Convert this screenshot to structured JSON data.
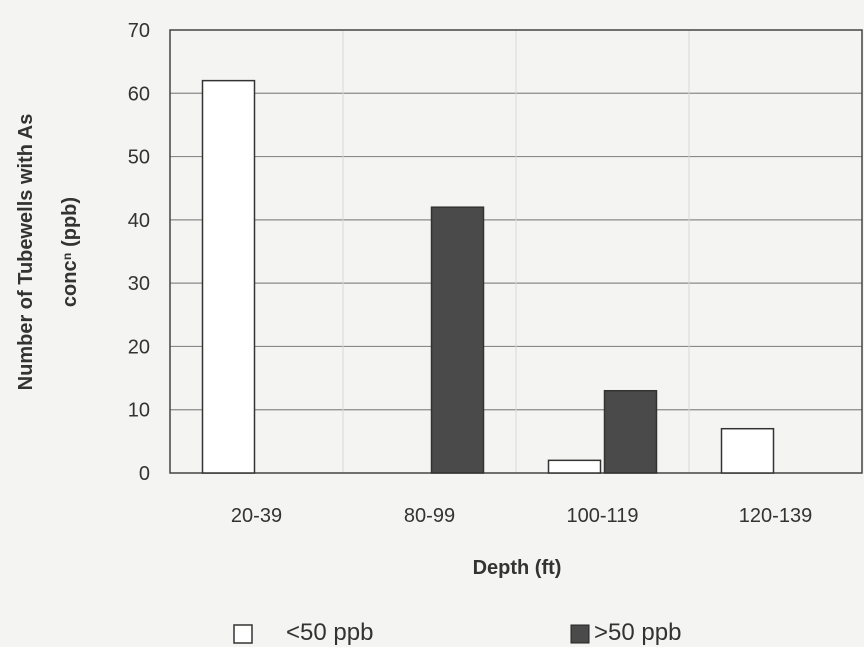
{
  "chart_data": {
    "type": "bar",
    "categories": [
      "20-39",
      "80-99",
      "100-119",
      "120-139"
    ],
    "series": [
      {
        "name": "<50 ppb",
        "values": [
          62,
          0,
          2,
          7
        ],
        "color": "#ffffff"
      },
      {
        "name": ">50 ppb",
        "values": [
          0,
          42,
          13,
          0
        ],
        "color": "#4a4a4a"
      }
    ],
    "title": "",
    "xlabel": "Depth (ft)",
    "ylabel_line1": "Number of Tubewells with As",
    "ylabel_line2": "concⁿ (ppb)",
    "ylim": [
      0,
      70
    ],
    "yticks": [
      0,
      10,
      20,
      30,
      40,
      50,
      60,
      70
    ],
    "grid": true,
    "legend_position": "bottom"
  }
}
